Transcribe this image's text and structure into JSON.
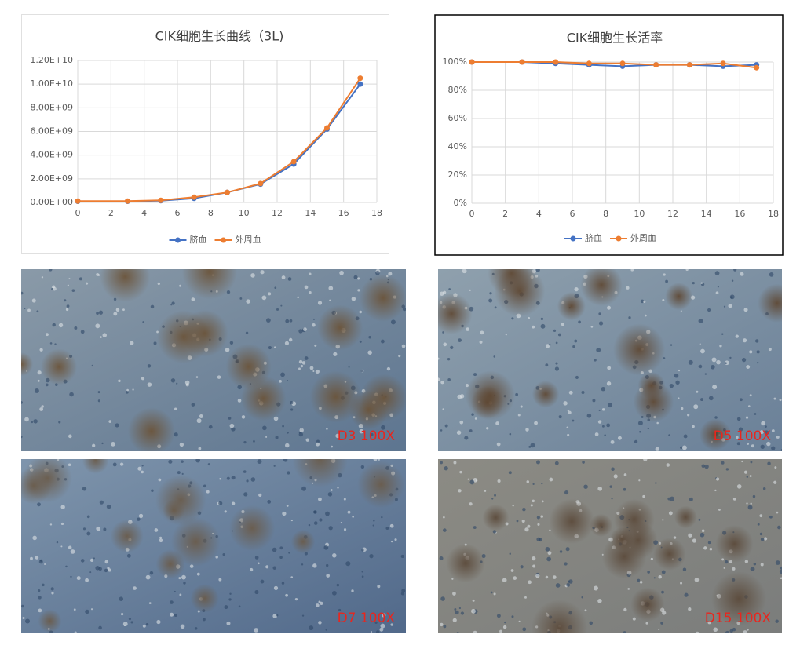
{
  "chart_data": [
    {
      "type": "line",
      "title": "CIK细胞生长曲线（3L)",
      "x": [
        0,
        3,
        5,
        7,
        9,
        11,
        13,
        15,
        17
      ],
      "series": [
        {
          "name": "脐血",
          "color": "#4472c4",
          "values": [
            100000000,
            100000000,
            150000000,
            350000000,
            850000000,
            1550000000,
            3250000000,
            6200000000,
            10000000000
          ]
        },
        {
          "name": "外周血",
          "color": "#ed7d31",
          "values": [
            120000000,
            120000000,
            180000000,
            450000000,
            850000000,
            1600000000,
            3450000000,
            6300000000,
            10500000000
          ]
        }
      ],
      "xlim": [
        0,
        18
      ],
      "xticks": [
        0,
        2,
        4,
        6,
        8,
        10,
        12,
        14,
        16,
        18
      ],
      "ylim": [
        0,
        12000000000
      ],
      "yticks": [
        {
          "value": 0,
          "label": "0.00E+00"
        },
        {
          "value": 2000000000,
          "label": "2.00E+09"
        },
        {
          "value": 4000000000,
          "label": "4.00E+09"
        },
        {
          "value": 6000000000,
          "label": "6.00E+09"
        },
        {
          "value": 8000000000,
          "label": "8.00E+09"
        },
        {
          "value": 10000000000,
          "label": "1.00E+10"
        },
        {
          "value": 12000000000,
          "label": "1.20E+10"
        }
      ],
      "grid": true,
      "legend": "bottom"
    },
    {
      "type": "line",
      "title": "CIK细胞生长活率",
      "x": [
        0,
        3,
        5,
        7,
        9,
        11,
        13,
        15,
        17
      ],
      "series": [
        {
          "name": "脐血",
          "color": "#4472c4",
          "values": [
            100,
            100,
            99,
            98,
            97,
            98,
            98,
            97,
            98
          ]
        },
        {
          "name": "外周血",
          "color": "#ed7d31",
          "values": [
            100,
            100,
            100,
            99,
            99,
            98,
            98,
            99,
            96
          ]
        }
      ],
      "xlim": [
        0,
        18
      ],
      "xticks": [
        0,
        2,
        4,
        6,
        8,
        10,
        12,
        14,
        16,
        18
      ],
      "ylim": [
        0,
        100
      ],
      "yticks": [
        {
          "value": 0,
          "label": "0%"
        },
        {
          "value": 20,
          "label": "20%"
        },
        {
          "value": 40,
          "label": "40%"
        },
        {
          "value": 60,
          "label": "60%"
        },
        {
          "value": 80,
          "label": "80%"
        },
        {
          "value": 100,
          "label": "100%"
        }
      ],
      "grid": true,
      "legend": "bottom"
    }
  ],
  "images": [
    {
      "label": "D3 100X"
    },
    {
      "label": "D5 100X"
    },
    {
      "label": "D7 100X"
    },
    {
      "label": "D15 100X"
    }
  ]
}
